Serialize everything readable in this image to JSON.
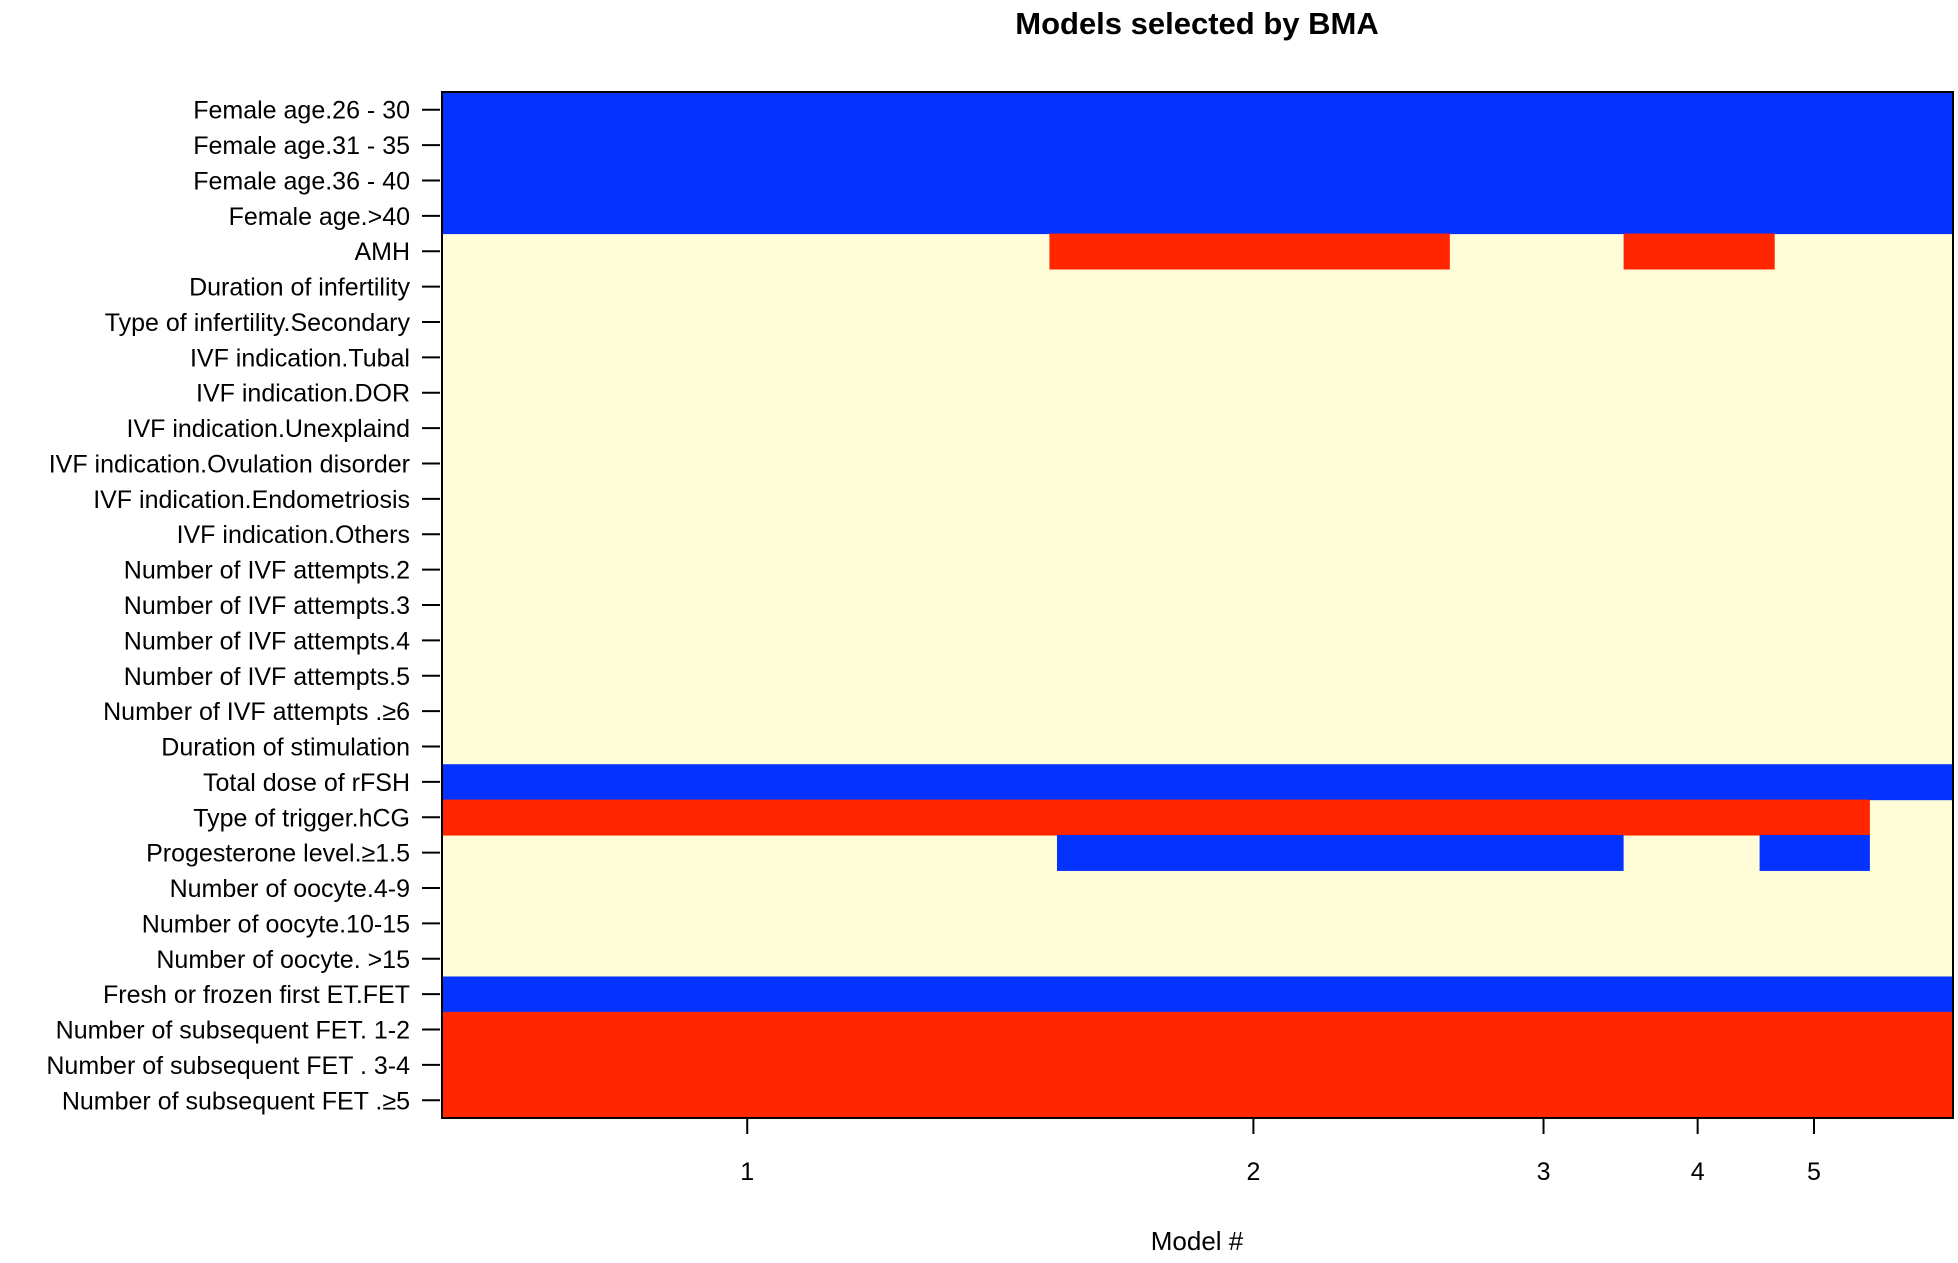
{
  "chart_data": {
    "type": "heatmap",
    "title": "Models selected by BMA",
    "xlabel": "Model #",
    "ylabel": "",
    "x_ticks": [
      "1",
      "2",
      "3",
      "4",
      "5"
    ],
    "x_tick_cumprob": [
      0.202,
      0.537,
      0.729,
      0.831,
      0.908
    ],
    "xlim_cumprob": [
      0,
      1
    ],
    "colors": {
      "positive": "#0433ff",
      "negative": "#ff2600",
      "absent": "#fffdd8",
      "frame": "#000000"
    },
    "variables": [
      "Female age.26 - 30",
      "Female age.31 - 35",
      "Female age.36 - 40",
      "Female age.>40",
      "AMH",
      "Duration of infertility",
      "Type of infertility.Secondary",
      "IVF indication.Tubal",
      "IVF indication.DOR",
      "IVF indication.Unexplaind",
      "IVF indication.Ovulation disorder",
      "IVF indication.Endometriosis",
      "IVF indication.Others",
      "Number of IVF attempts.2",
      "Number of IVF attempts.3",
      "Number of IVF attempts.4",
      "Number of IVF attempts.5",
      "Number of IVF attempts .≥6",
      "Duration of stimulation",
      "Total dose of rFSH",
      "Type of trigger.hCG",
      "Progesterone level.≥1.5",
      "Number of oocyte.4-9",
      "Number of oocyte.10-15",
      "Number of oocyte. >15",
      "Fresh or frozen first ET.FET",
      "Number of subsequent FET. 1-2",
      "Number of subsequent FET . 3-4",
      "Number of subsequent FET .≥5"
    ],
    "included_segments": [
      {
        "variable": "Female age.26 - 30",
        "sign": "positive",
        "from": 0.0,
        "to": 1.0
      },
      {
        "variable": "Female age.31 - 35",
        "sign": "positive",
        "from": 0.0,
        "to": 1.0
      },
      {
        "variable": "Female age.36 - 40",
        "sign": "positive",
        "from": 0.0,
        "to": 1.0
      },
      {
        "variable": "Female age.>40",
        "sign": "positive",
        "from": 0.0,
        "to": 1.0
      },
      {
        "variable": "AMH",
        "sign": "negative",
        "from": 0.402,
        "to": 0.667
      },
      {
        "variable": "AMH",
        "sign": "negative",
        "from": 0.782,
        "to": 0.882
      },
      {
        "variable": "Total dose of rFSH",
        "sign": "positive",
        "from": 0.0,
        "to": 1.0
      },
      {
        "variable": "Type of trigger.hCG",
        "sign": "negative",
        "from": 0.0,
        "to": 0.945
      },
      {
        "variable": "Progesterone level.≥1.5",
        "sign": "positive",
        "from": 0.407,
        "to": 0.782
      },
      {
        "variable": "Progesterone level.≥1.5",
        "sign": "positive",
        "from": 0.872,
        "to": 0.945
      },
      {
        "variable": "Fresh or frozen first ET.FET",
        "sign": "positive",
        "from": 0.0,
        "to": 1.0
      },
      {
        "variable": "Number of subsequent FET. 1-2",
        "sign": "negative",
        "from": 0.0,
        "to": 1.0
      },
      {
        "variable": "Number of subsequent FET . 3-4",
        "sign": "negative",
        "from": 0.0,
        "to": 1.0
      },
      {
        "variable": "Number of subsequent FET .≥5",
        "sign": "negative",
        "from": 0.0,
        "to": 1.0
      }
    ]
  }
}
